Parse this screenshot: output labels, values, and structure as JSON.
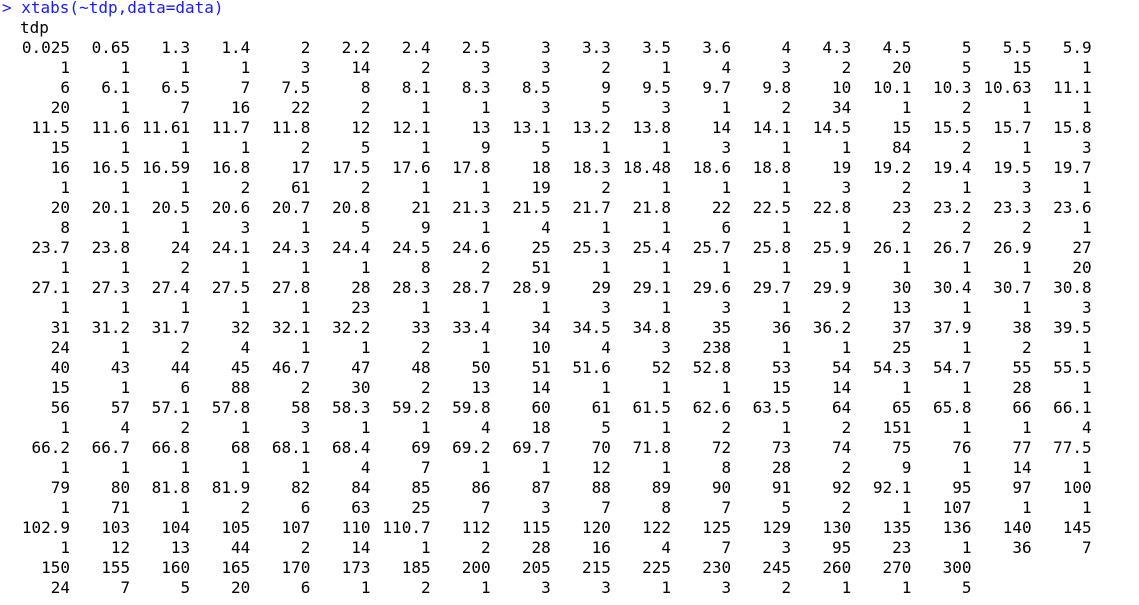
{
  "console": {
    "command": "> xtabs(~tdp,data=data)",
    "header": "tdp",
    "rows": [
      {
        "labels": [
          "0.025",
          "0.65",
          "1.3",
          "1.4",
          "2",
          "2.2",
          "2.4",
          "2.5",
          "3",
          "3.3",
          "3.5",
          "3.6",
          "4",
          "4.3",
          "4.5",
          "5",
          "5.5",
          "5.9"
        ],
        "counts": [
          1,
          1,
          1,
          1,
          3,
          14,
          2,
          3,
          3,
          2,
          1,
          4,
          3,
          2,
          20,
          5,
          15,
          1
        ]
      },
      {
        "labels": [
          "6",
          "6.1",
          "6.5",
          "7",
          "7.5",
          "8",
          "8.1",
          "8.3",
          "8.5",
          "9",
          "9.5",
          "9.7",
          "9.8",
          "10",
          "10.1",
          "10.3",
          "10.63",
          "11.1"
        ],
        "counts": [
          20,
          1,
          7,
          16,
          22,
          2,
          1,
          1,
          3,
          5,
          3,
          1,
          2,
          34,
          1,
          2,
          1,
          1
        ]
      },
      {
        "labels": [
          "11.5",
          "11.6",
          "11.61",
          "11.7",
          "11.8",
          "12",
          "12.1",
          "13",
          "13.1",
          "13.2",
          "13.8",
          "14",
          "14.1",
          "14.5",
          "15",
          "15.5",
          "15.7",
          "15.8"
        ],
        "counts": [
          15,
          1,
          1,
          1,
          2,
          5,
          1,
          9,
          5,
          1,
          1,
          3,
          1,
          1,
          84,
          2,
          1,
          3
        ]
      },
      {
        "labels": [
          "16",
          "16.5",
          "16.59",
          "16.8",
          "17",
          "17.5",
          "17.6",
          "17.8",
          "18",
          "18.3",
          "18.48",
          "18.6",
          "18.8",
          "19",
          "19.2",
          "19.4",
          "19.5",
          "19.7"
        ],
        "counts": [
          1,
          1,
          1,
          2,
          61,
          2,
          1,
          1,
          19,
          2,
          1,
          1,
          1,
          3,
          2,
          1,
          3,
          1
        ]
      },
      {
        "labels": [
          "20",
          "20.1",
          "20.5",
          "20.6",
          "20.7",
          "20.8",
          "21",
          "21.3",
          "21.5",
          "21.7",
          "21.8",
          "22",
          "22.5",
          "22.8",
          "23",
          "23.2",
          "23.3",
          "23.6"
        ],
        "counts": [
          8,
          1,
          1,
          3,
          1,
          5,
          9,
          1,
          4,
          1,
          1,
          6,
          1,
          1,
          2,
          2,
          2,
          1
        ]
      },
      {
        "labels": [
          "23.7",
          "23.8",
          "24",
          "24.1",
          "24.3",
          "24.4",
          "24.5",
          "24.6",
          "25",
          "25.3",
          "25.4",
          "25.7",
          "25.8",
          "25.9",
          "26.1",
          "26.7",
          "26.9",
          "27"
        ],
        "counts": [
          1,
          1,
          2,
          1,
          1,
          1,
          8,
          2,
          51,
          1,
          1,
          1,
          1,
          1,
          1,
          1,
          1,
          20
        ]
      },
      {
        "labels": [
          "27.1",
          "27.3",
          "27.4",
          "27.5",
          "27.8",
          "28",
          "28.3",
          "28.7",
          "28.9",
          "29",
          "29.1",
          "29.6",
          "29.7",
          "29.9",
          "30",
          "30.4",
          "30.7",
          "30.8"
        ],
        "counts": [
          1,
          1,
          1,
          1,
          1,
          23,
          1,
          1,
          1,
          3,
          1,
          3,
          1,
          2,
          13,
          1,
          1,
          3
        ]
      },
      {
        "labels": [
          "31",
          "31.2",
          "31.7",
          "32",
          "32.1",
          "32.2",
          "33",
          "33.4",
          "34",
          "34.5",
          "34.8",
          "35",
          "36",
          "36.2",
          "37",
          "37.9",
          "38",
          "39.5"
        ],
        "counts": [
          24,
          1,
          2,
          4,
          1,
          1,
          2,
          1,
          10,
          4,
          3,
          238,
          1,
          1,
          25,
          1,
          2,
          1
        ]
      },
      {
        "labels": [
          "40",
          "43",
          "44",
          "45",
          "46.7",
          "47",
          "48",
          "50",
          "51",
          "51.6",
          "52",
          "52.8",
          "53",
          "54",
          "54.3",
          "54.7",
          "55",
          "55.5"
        ],
        "counts": [
          15,
          1,
          6,
          88,
          2,
          30,
          2,
          13,
          14,
          1,
          1,
          1,
          15,
          14,
          1,
          1,
          28,
          1
        ]
      },
      {
        "labels": [
          "56",
          "57",
          "57.1",
          "57.8",
          "58",
          "58.3",
          "59.2",
          "59.8",
          "60",
          "61",
          "61.5",
          "62.6",
          "63.5",
          "64",
          "65",
          "65.8",
          "66",
          "66.1"
        ],
        "counts": [
          1,
          4,
          2,
          1,
          3,
          1,
          1,
          4,
          18,
          5,
          1,
          2,
          1,
          2,
          151,
          1,
          1,
          4
        ]
      },
      {
        "labels": [
          "66.2",
          "66.7",
          "66.8",
          "68",
          "68.1",
          "68.4",
          "69",
          "69.2",
          "69.7",
          "70",
          "71.8",
          "72",
          "73",
          "74",
          "75",
          "76",
          "77",
          "77.5"
        ],
        "counts": [
          1,
          1,
          1,
          1,
          1,
          4,
          7,
          1,
          1,
          12,
          1,
          8,
          28,
          2,
          9,
          1,
          14,
          1
        ]
      },
      {
        "labels": [
          "79",
          "80",
          "81.8",
          "81.9",
          "82",
          "84",
          "85",
          "86",
          "87",
          "88",
          "89",
          "90",
          "91",
          "92",
          "92.1",
          "95",
          "97",
          "100"
        ],
        "counts": [
          1,
          71,
          1,
          2,
          6,
          63,
          25,
          7,
          3,
          7,
          8,
          7,
          5,
          2,
          1,
          107,
          1,
          1
        ]
      },
      {
        "labels": [
          "102.9",
          "103",
          "104",
          "105",
          "107",
          "110",
          "110.7",
          "112",
          "115",
          "120",
          "122",
          "125",
          "129",
          "130",
          "135",
          "136",
          "140",
          "145"
        ],
        "counts": [
          1,
          12,
          13,
          44,
          2,
          14,
          1,
          2,
          28,
          16,
          4,
          7,
          3,
          95,
          23,
          1,
          36,
          7
        ]
      },
      {
        "labels": [
          "150",
          "155",
          "160",
          "165",
          "170",
          "173",
          "185",
          "200",
          "205",
          "215",
          "225",
          "230",
          "245",
          "260",
          "270",
          "300"
        ],
        "counts": [
          24,
          7,
          5,
          20,
          6,
          1,
          2,
          1,
          3,
          3,
          1,
          3,
          2,
          1,
          1,
          5
        ]
      }
    ]
  }
}
